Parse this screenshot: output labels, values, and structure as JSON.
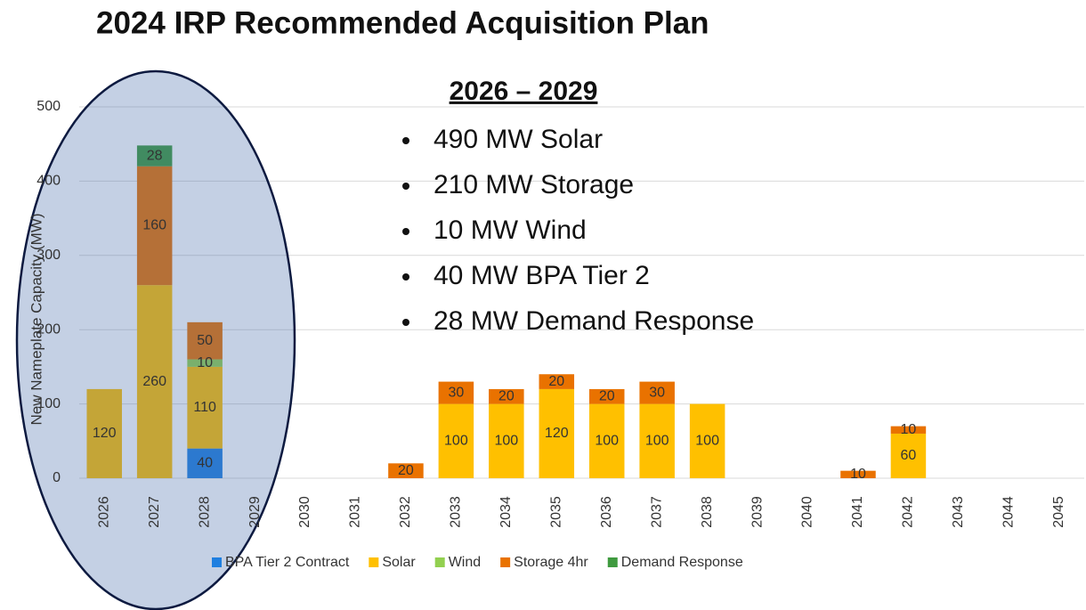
{
  "chart_data": {
    "type": "bar",
    "stacked": true,
    "title": "2024 IRP Recommended Acquisition Plan",
    "y_label": "New Nameplate Capacity (MW)",
    "categories": [
      "2026",
      "2027",
      "2028",
      "2029",
      "2030",
      "2031",
      "2032",
      "2033",
      "2034",
      "2035",
      "2036",
      "2037",
      "2038",
      "2039",
      "2040",
      "2041",
      "2042",
      "2043",
      "2044",
      "2045"
    ],
    "series": [
      {
        "name": "BPA Tier 2 Contract",
        "color": "#1f7fe0",
        "values": [
          null,
          null,
          40,
          null,
          null,
          null,
          null,
          null,
          null,
          null,
          null,
          null,
          null,
          null,
          null,
          null,
          null,
          null,
          null,
          null
        ]
      },
      {
        "name": "Solar",
        "color": "#ffc000",
        "values": [
          120,
          260,
          110,
          null,
          null,
          null,
          null,
          100,
          100,
          120,
          100,
          100,
          100,
          null,
          null,
          null,
          60,
          null,
          null,
          null
        ]
      },
      {
        "name": "Wind",
        "color": "#92d050",
        "values": [
          null,
          null,
          10,
          null,
          null,
          null,
          null,
          null,
          null,
          null,
          null,
          null,
          null,
          null,
          null,
          null,
          null,
          null,
          null,
          null
        ]
      },
      {
        "name": "Storage 4hr",
        "color": "#e97200",
        "values": [
          null,
          160,
          50,
          null,
          null,
          null,
          20,
          30,
          20,
          20,
          20,
          30,
          null,
          null,
          null,
          10,
          10,
          null,
          null,
          null
        ]
      },
      {
        "name": "Demand Response",
        "color": "#3f9a3f",
        "values": [
          null,
          28,
          null,
          null,
          null,
          null,
          null,
          null,
          null,
          null,
          null,
          null,
          null,
          null,
          null,
          null,
          null,
          null,
          null,
          null
        ]
      }
    ],
    "ylim": [
      0,
      500
    ],
    "yticks": [
      0,
      100,
      200,
      300,
      400,
      500
    ],
    "grid": true,
    "legend": "bottom",
    "annotation": {
      "title": "2026 – 2029",
      "items": [
        "490 MW Solar",
        "210 MW Storage",
        "10 MW Wind",
        "40 MW BPA Tier 2",
        "28 MW Demand Response"
      ]
    }
  }
}
